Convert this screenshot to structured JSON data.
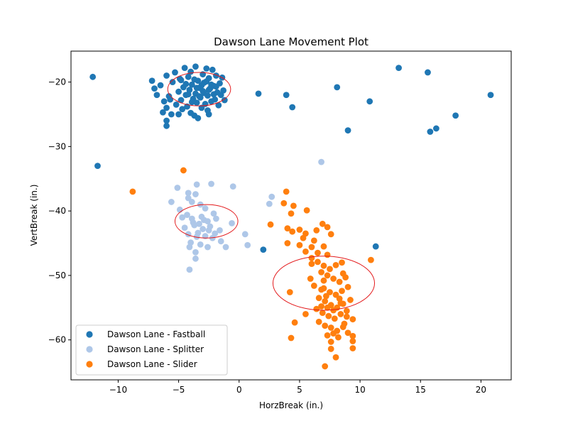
{
  "chart_data": {
    "type": "scatter",
    "title": "Dawson Lane Movement Plot",
    "xlabel": "HorzBreak (in.)",
    "ylabel": "VertBreak (in.)",
    "xlim": [
      -13.9,
      22.5
    ],
    "ylim": [
      -66.2,
      -15.2
    ],
    "xticks": [
      -10,
      -5,
      0,
      5,
      10,
      15,
      20
    ],
    "yticks": [
      -20,
      -30,
      -40,
      -50,
      -60
    ],
    "x_tick_labels": [
      "−10",
      "−5",
      "0",
      "5",
      "10",
      "15",
      "20"
    ],
    "y_tick_labels": [
      "−20",
      "−30",
      "−40",
      "−50",
      "−60"
    ],
    "grid": false,
    "legend_position": "lower-left",
    "series": [
      {
        "name": "Dawson Lane - Fastball",
        "color": "#1f77b4",
        "points": [
          [
            -12.1,
            -19.2
          ],
          [
            -11.7,
            -33.0
          ],
          [
            1.6,
            -21.8
          ],
          [
            3.9,
            -22.0
          ],
          [
            4.4,
            -23.9
          ],
          [
            8.1,
            -20.8
          ],
          [
            9.0,
            -27.5
          ],
          [
            10.8,
            -23.0
          ],
          [
            13.2,
            -17.8
          ],
          [
            15.6,
            -18.5
          ],
          [
            15.8,
            -27.7
          ],
          [
            16.3,
            -27.2
          ],
          [
            17.9,
            -25.2
          ],
          [
            20.8,
            -22.0
          ],
          [
            2.0,
            -46.0
          ],
          [
            11.3,
            -45.5
          ],
          [
            -7.2,
            -19.8
          ],
          [
            -7.0,
            -21.0
          ],
          [
            -6.8,
            -22.0
          ],
          [
            -6.5,
            -20.5
          ],
          [
            -6.2,
            -23.0
          ],
          [
            -6.0,
            -19.0
          ],
          [
            -6.0,
            -24.0
          ],
          [
            -6.0,
            -26.0
          ],
          [
            -6.0,
            -26.8
          ],
          [
            -5.8,
            -22.2
          ],
          [
            -5.6,
            -25.0
          ],
          [
            -5.5,
            -20.0
          ],
          [
            -5.3,
            -18.5
          ],
          [
            -5.2,
            -23.5
          ],
          [
            -5.0,
            -21.5
          ],
          [
            -5.0,
            -25.0
          ],
          [
            -4.9,
            -19.5
          ],
          [
            -4.8,
            -22.8
          ],
          [
            -4.7,
            -24.2
          ],
          [
            -4.6,
            -20.8
          ],
          [
            -4.5,
            -17.8
          ],
          [
            -4.4,
            -22.0
          ],
          [
            -4.3,
            -23.8
          ],
          [
            -4.2,
            -19.2
          ],
          [
            -4.1,
            -21.2
          ],
          [
            -4.0,
            -24.8
          ],
          [
            -4.0,
            -18.4
          ],
          [
            -3.9,
            -20.4
          ],
          [
            -3.8,
            -22.6
          ],
          [
            -3.7,
            -25.2
          ],
          [
            -3.6,
            -17.6
          ],
          [
            -3.6,
            -21.8
          ],
          [
            -3.5,
            -23.2
          ],
          [
            -3.4,
            -19.8
          ],
          [
            -3.3,
            -20.9
          ],
          [
            -3.2,
            -22.4
          ],
          [
            -3.1,
            -24.0
          ],
          [
            -3.0,
            -18.8
          ],
          [
            -3.0,
            -21.4
          ],
          [
            -2.9,
            -20.1
          ],
          [
            -2.8,
            -23.4
          ],
          [
            -2.7,
            -17.9
          ],
          [
            -2.6,
            -22.1
          ],
          [
            -2.5,
            -25.0
          ],
          [
            -2.5,
            -19.4
          ],
          [
            -2.4,
            -21.0
          ],
          [
            -2.3,
            -23.0
          ],
          [
            -2.2,
            -18.1
          ],
          [
            -2.1,
            -20.6
          ],
          [
            -2.0,
            -22.7
          ],
          [
            -1.9,
            -19.0
          ],
          [
            -1.8,
            -21.6
          ],
          [
            -1.7,
            -23.6
          ],
          [
            -1.6,
            -20.2
          ],
          [
            -1.5,
            -22.0
          ],
          [
            -1.4,
            -19.3
          ],
          [
            -1.3,
            -21.3
          ],
          [
            -1.2,
            -22.8
          ],
          [
            -4.4,
            -20.3
          ],
          [
            -4.2,
            -21.9
          ],
          [
            -3.9,
            -23.1
          ],
          [
            -3.7,
            -19.6
          ],
          [
            -3.5,
            -20.9
          ],
          [
            -3.3,
            -22.2
          ],
          [
            -3.1,
            -20.5
          ],
          [
            -2.9,
            -21.7
          ],
          [
            -2.7,
            -19.9
          ],
          [
            -2.5,
            -21.2
          ],
          [
            -2.3,
            -20.4
          ],
          [
            -2.1,
            -21.9
          ],
          [
            -1.9,
            -20.7
          ],
          [
            -5.7,
            -22.7
          ],
          [
            -6.3,
            -24.7
          ],
          [
            -3.4,
            -25.6
          ],
          [
            -2.6,
            -24.4
          ],
          [
            -4.8,
            -19.7
          ]
        ]
      },
      {
        "name": "Dawson Lane - Splitter",
        "color": "#aec7e8",
        "points": [
          [
            -5.1,
            -36.4
          ],
          [
            -4.2,
            -37.2
          ],
          [
            -3.5,
            -35.9
          ],
          [
            -2.3,
            -35.8
          ],
          [
            -0.5,
            -36.2
          ],
          [
            -5.6,
            -38.6
          ],
          [
            -4.2,
            -38.0
          ],
          [
            -3.6,
            -37.4
          ],
          [
            -3.9,
            -38.6
          ],
          [
            -3.2,
            -39.0
          ],
          [
            -4.9,
            -39.8
          ],
          [
            -4.3,
            -40.6
          ],
          [
            -2.8,
            -39.6
          ],
          [
            -2.1,
            -40.4
          ],
          [
            -4.7,
            -41.0
          ],
          [
            -3.9,
            -41.2
          ],
          [
            -3.1,
            -40.9
          ],
          [
            -2.6,
            -41.6
          ],
          [
            -1.9,
            -41.2
          ],
          [
            -0.6,
            -41.9
          ],
          [
            -4.5,
            -42.6
          ],
          [
            -3.7,
            -42.2
          ],
          [
            -3.0,
            -42.8
          ],
          [
            -2.4,
            -42.4
          ],
          [
            -1.6,
            -43.0
          ],
          [
            -4.2,
            -43.6
          ],
          [
            -3.4,
            -43.4
          ],
          [
            -2.8,
            -43.9
          ],
          [
            -2.2,
            -44.2
          ],
          [
            -1.5,
            -44.7
          ],
          [
            -4.0,
            -44.9
          ],
          [
            -3.2,
            -45.2
          ],
          [
            -2.6,
            -45.6
          ],
          [
            -1.1,
            -45.6
          ],
          [
            -4.1,
            -45.6
          ],
          [
            -3.6,
            -46.4
          ],
          [
            -3.6,
            -47.4
          ],
          [
            -4.1,
            -49.1
          ],
          [
            0.5,
            -43.6
          ],
          [
            0.7,
            -45.3
          ],
          [
            2.5,
            -38.9
          ],
          [
            2.7,
            -37.8
          ],
          [
            6.8,
            -32.4
          ],
          [
            -3.8,
            -41.8
          ],
          [
            -3.3,
            -42.0
          ],
          [
            -2.9,
            -41.4
          ],
          [
            -2.5,
            -43.0
          ],
          [
            -3.5,
            -44.0
          ],
          [
            -2.0,
            -43.5
          ]
        ]
      },
      {
        "name": "Dawson Lane - Slider",
        "color": "#ff7f0e",
        "points": [
          [
            -4.6,
            -33.7
          ],
          [
            -8.8,
            -37.0
          ],
          [
            3.9,
            -37.0
          ],
          [
            3.7,
            -38.8
          ],
          [
            4.5,
            -39.2
          ],
          [
            4.3,
            -40.4
          ],
          [
            5.6,
            -39.9
          ],
          [
            2.6,
            -42.1
          ],
          [
            4.0,
            -42.7
          ],
          [
            4.4,
            -43.2
          ],
          [
            5.0,
            -42.9
          ],
          [
            5.5,
            -43.5
          ],
          [
            6.4,
            -43.0
          ],
          [
            6.9,
            -42.0
          ],
          [
            7.3,
            -42.5
          ],
          [
            7.6,
            -43.6
          ],
          [
            4.0,
            -45.0
          ],
          [
            5.0,
            -45.3
          ],
          [
            5.5,
            -46.3
          ],
          [
            6.0,
            -45.6
          ],
          [
            6.5,
            -46.5
          ],
          [
            7.0,
            -45.5
          ],
          [
            7.3,
            -46.8
          ],
          [
            6.0,
            -48.2
          ],
          [
            6.5,
            -47.9
          ],
          [
            7.0,
            -48.5
          ],
          [
            7.5,
            -49.0
          ],
          [
            8.0,
            -48.4
          ],
          [
            8.5,
            -48.0
          ],
          [
            6.8,
            -49.5
          ],
          [
            7.3,
            -50.0
          ],
          [
            7.8,
            -50.5
          ],
          [
            8.3,
            -51.0
          ],
          [
            8.8,
            -50.3
          ],
          [
            6.2,
            -51.6
          ],
          [
            7.0,
            -52.0
          ],
          [
            7.5,
            -52.6
          ],
          [
            8.0,
            -53.0
          ],
          [
            8.5,
            -52.4
          ],
          [
            9.0,
            -51.8
          ],
          [
            6.6,
            -53.5
          ],
          [
            7.1,
            -54.0
          ],
          [
            7.6,
            -54.6
          ],
          [
            8.1,
            -55.0
          ],
          [
            8.6,
            -54.4
          ],
          [
            9.2,
            -53.8
          ],
          [
            6.4,
            -55.2
          ],
          [
            6.9,
            -55.8
          ],
          [
            7.4,
            -56.3
          ],
          [
            7.9,
            -56.7
          ],
          [
            8.4,
            -56.0
          ],
          [
            8.9,
            -55.5
          ],
          [
            9.4,
            -56.8
          ],
          [
            6.6,
            -57.2
          ],
          [
            7.1,
            -57.8
          ],
          [
            7.6,
            -58.1
          ],
          [
            8.1,
            -58.6
          ],
          [
            8.6,
            -58.0
          ],
          [
            9.0,
            -58.9
          ],
          [
            9.4,
            -59.4
          ],
          [
            7.3,
            -59.3
          ],
          [
            7.8,
            -59.0
          ],
          [
            8.2,
            -59.6
          ],
          [
            9.4,
            -60.2
          ],
          [
            7.6,
            -60.3
          ],
          [
            7.6,
            -61.4
          ],
          [
            9.4,
            -61.3
          ],
          [
            8.0,
            -62.7
          ],
          [
            7.1,
            -64.1
          ],
          [
            4.3,
            -59.7
          ],
          [
            4.6,
            -57.3
          ],
          [
            5.5,
            -56.0
          ],
          [
            10.9,
            -47.6
          ],
          [
            4.2,
            -52.6
          ],
          [
            5.9,
            -50.5
          ],
          [
            6.8,
            -52.2
          ],
          [
            7.2,
            -53.2
          ],
          [
            8.3,
            -53.6
          ],
          [
            8.7,
            -57.5
          ],
          [
            7.8,
            -55.4
          ],
          [
            7.3,
            -55.0
          ],
          [
            8.4,
            -54.3
          ],
          [
            6.8,
            -54.8
          ],
          [
            8.9,
            -56.4
          ],
          [
            7.0,
            -50.8
          ],
          [
            8.6,
            -49.7
          ],
          [
            6.0,
            -47.3
          ],
          [
            5.3,
            -44.2
          ],
          [
            6.2,
            -44.6
          ]
        ]
      }
    ],
    "ellipses": [
      {
        "series": "Dawson Lane - Fastball",
        "cx": -3.3,
        "cy": -21.1,
        "rx": 2.6,
        "ry": 2.6,
        "color": "#e31a1c"
      },
      {
        "series": "Dawson Lane - Splitter",
        "cx": -2.7,
        "cy": -41.6,
        "rx": 2.6,
        "ry": 2.6,
        "color": "#e31a1c"
      },
      {
        "series": "Dawson Lane - Slider",
        "cx": 7.0,
        "cy": -51.2,
        "rx": 4.2,
        "ry": 4.2,
        "color": "#e31a1c"
      }
    ]
  }
}
